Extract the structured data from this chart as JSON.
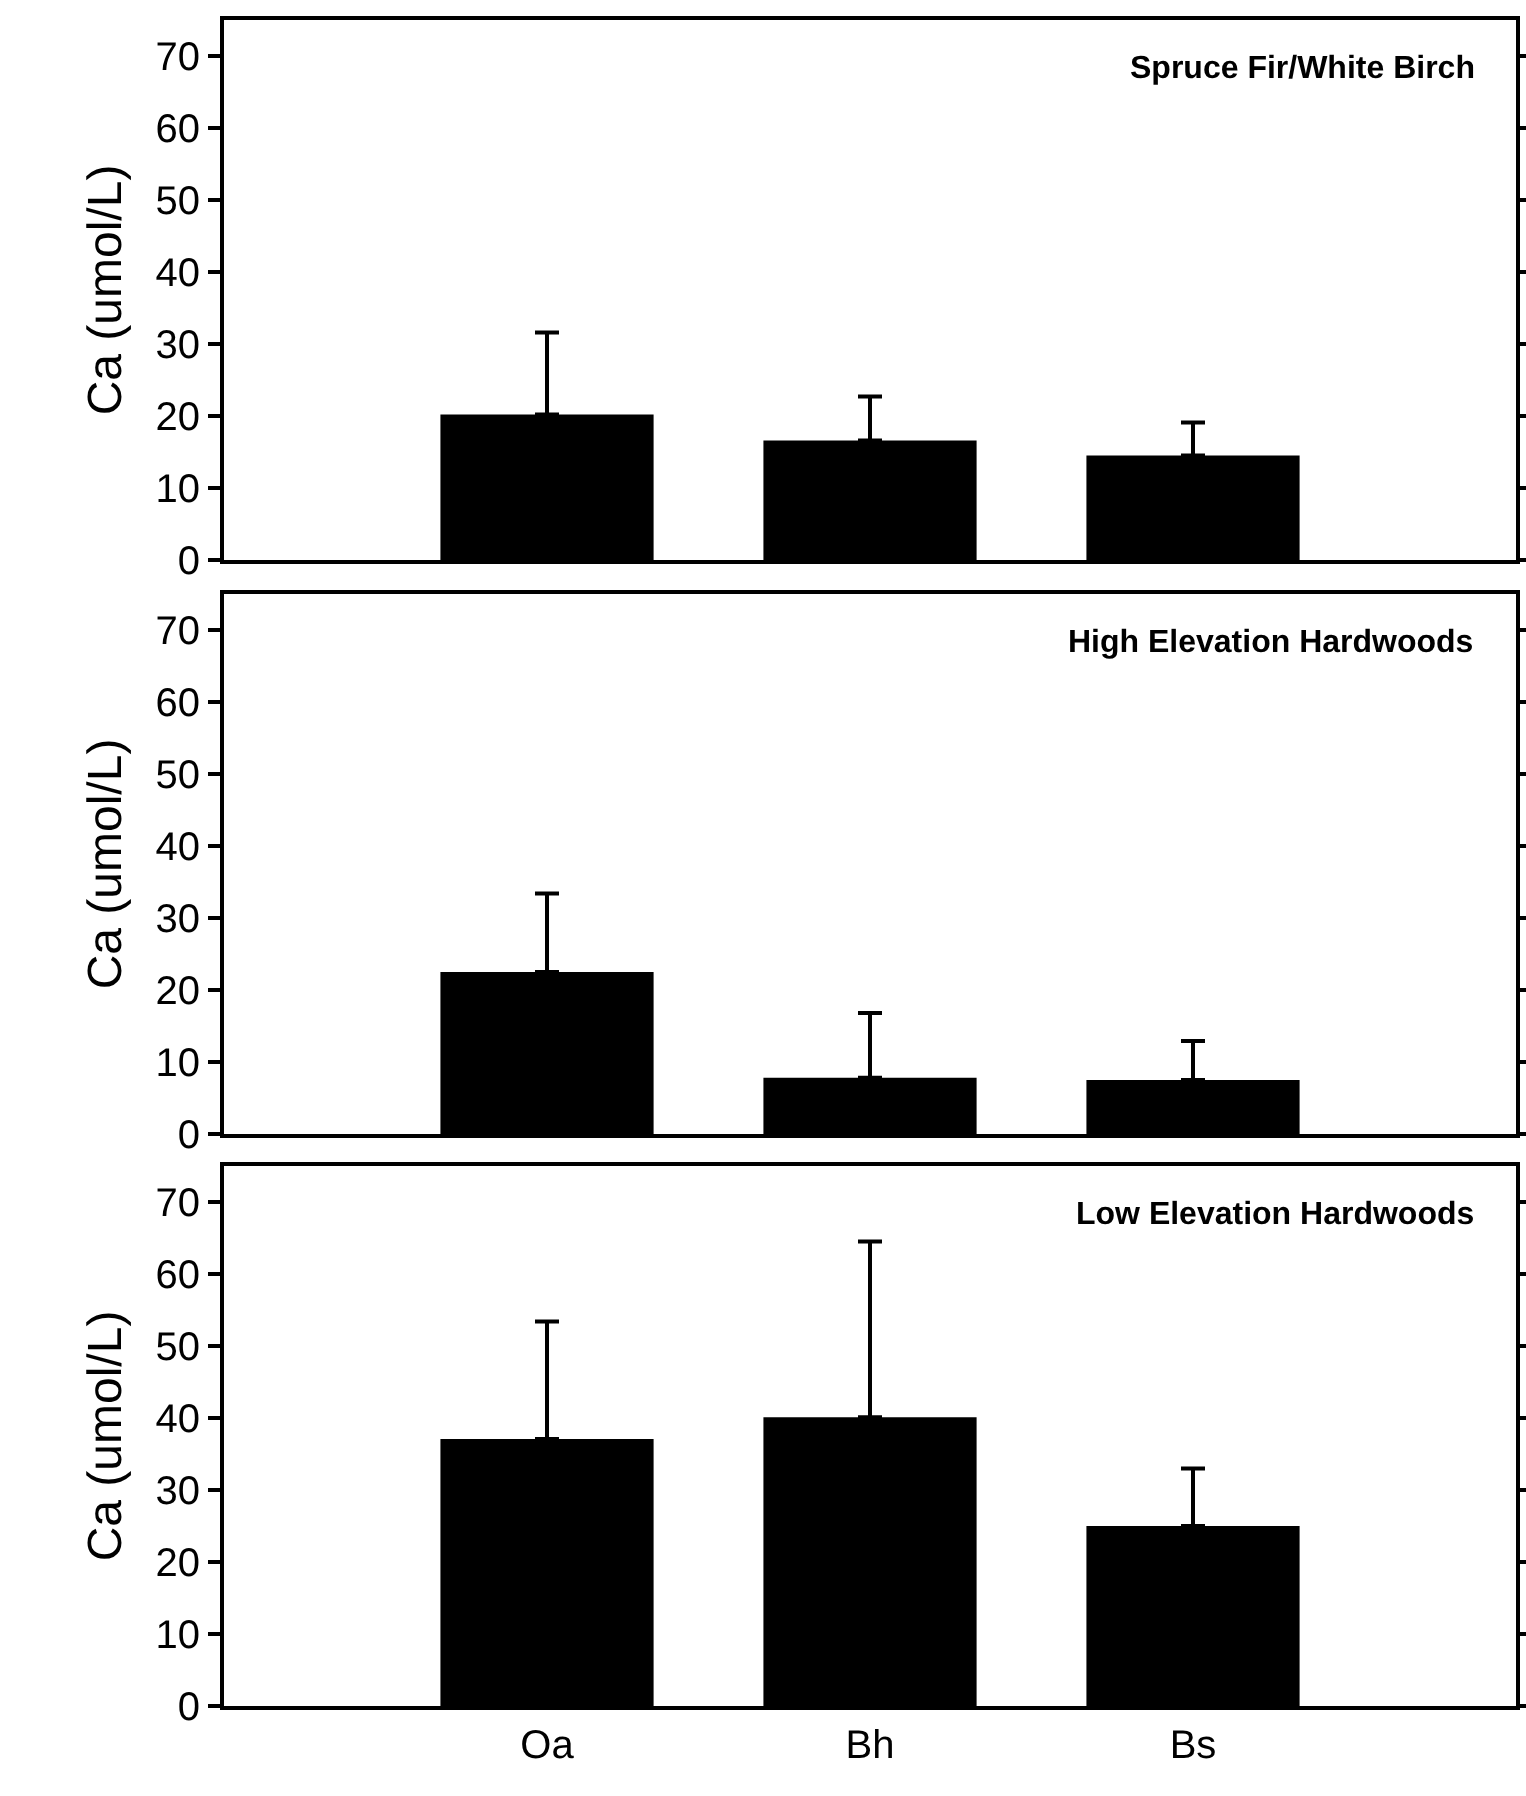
{
  "chart_data": [
    {
      "type": "bar",
      "title": "Spruce Fir/White Birch",
      "ylabel": "Ca (umol/L)",
      "categories": [
        null,
        null,
        null
      ],
      "values": [
        20.2,
        16.6,
        14.5
      ],
      "errors": [
        [
          20.2,
          31.6
        ],
        [
          16.6,
          22.7
        ],
        [
          14.5,
          19.1
        ]
      ],
      "color": "#000000",
      "ylim": [
        0,
        75
      ],
      "yticks": [
        0,
        10,
        20,
        30,
        40,
        50,
        60,
        70
      ],
      "grid": false,
      "legend": false,
      "tick_labels": "y"
    },
    {
      "type": "bar",
      "title": "High Elevation Hardwoods",
      "ylabel": "Ca (umol/L)",
      "categories": [
        null,
        null,
        null
      ],
      "values": [
        22.5,
        7.8,
        7.5
      ],
      "errors": [
        [
          22.5,
          33.4
        ],
        [
          7.8,
          16.8
        ],
        [
          7.5,
          12.9
        ]
      ],
      "color": "#000000",
      "ylim": [
        0,
        75
      ],
      "yticks": [
        0,
        10,
        20,
        30,
        40,
        50,
        60,
        70
      ],
      "grid": false,
      "legend": false,
      "tick_labels": "y"
    },
    {
      "type": "bar",
      "title": "Low Elevation Hardwoods",
      "ylabel": "Ca (umol/L)",
      "categories": [
        "Oa",
        "Bh",
        "Bs"
      ],
      "values": [
        37.1,
        40.1,
        25.0
      ],
      "errors": [
        [
          37.1,
          53.4
        ],
        [
          40.1,
          64.5
        ],
        [
          25.0,
          33.0
        ]
      ],
      "color": "#000000",
      "ylim": [
        0,
        75
      ],
      "yticks": [
        0,
        10,
        20,
        30,
        40,
        50,
        60,
        70
      ],
      "grid": false,
      "legend": false
    }
  ]
}
